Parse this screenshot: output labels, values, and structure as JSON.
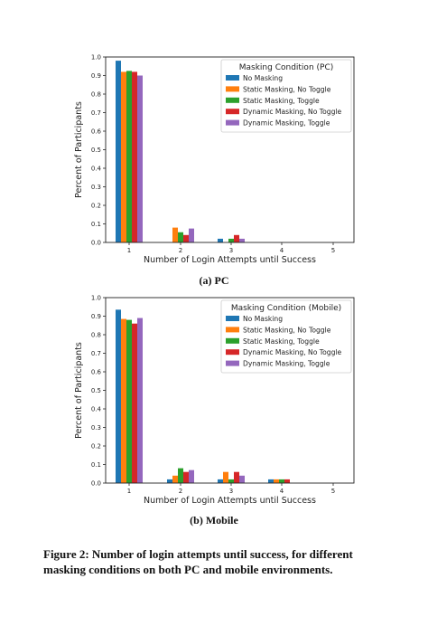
{
  "chart_data": [
    {
      "type": "bar",
      "categories": [
        "1",
        "2",
        "3",
        "4",
        "5"
      ],
      "xlabel": "Number of Login Attempts until Success",
      "ylabel": "Percent of Participants",
      "ylim": [
        0,
        1.0
      ],
      "yticks": [
        "0.0",
        "0.1",
        "0.2",
        "0.3",
        "0.4",
        "0.5",
        "0.6",
        "0.7",
        "0.8",
        "0.9",
        "1.0"
      ],
      "legend_title": "Masking Condition (PC)",
      "legend_position": "top-right",
      "series": [
        {
          "name": "No Masking",
          "color": "#1f77b4",
          "values": [
            0.98,
            0.0,
            0.02,
            0.0,
            0.0
          ]
        },
        {
          "name": "Static Masking, No Toggle",
          "color": "#ff7f0e",
          "values": [
            0.92,
            0.08,
            0.0,
            0.0,
            0.0
          ]
        },
        {
          "name": "Static Masking, Toggle",
          "color": "#2ca02c",
          "values": [
            0.925,
            0.055,
            0.02,
            0.0,
            0.0
          ]
        },
        {
          "name": "Dynamic Masking, No Toggle",
          "color": "#d62728",
          "values": [
            0.92,
            0.04,
            0.04,
            0.0,
            0.0
          ]
        },
        {
          "name": "Dynamic Masking, Toggle",
          "color": "#9467bd",
          "values": [
            0.9,
            0.075,
            0.02,
            0.0,
            0.0
          ]
        }
      ],
      "caption": "(a) PC"
    },
    {
      "type": "bar",
      "categories": [
        "1",
        "2",
        "3",
        "4",
        "5"
      ],
      "xlabel": "Number of Login Attempts until Success",
      "ylabel": "Percent of Participants",
      "ylim": [
        0,
        1.0
      ],
      "yticks": [
        "0.0",
        "0.1",
        "0.2",
        "0.3",
        "0.4",
        "0.5",
        "0.6",
        "0.7",
        "0.8",
        "0.9",
        "1.0"
      ],
      "legend_title": "Masking Condition (Mobile)",
      "legend_position": "top-right",
      "series": [
        {
          "name": "No Masking",
          "color": "#1f77b4",
          "values": [
            0.935,
            0.02,
            0.02,
            0.02,
            0.0
          ]
        },
        {
          "name": "Static Masking, No Toggle",
          "color": "#ff7f0e",
          "values": [
            0.885,
            0.04,
            0.06,
            0.02,
            0.0
          ]
        },
        {
          "name": "Static Masking, Toggle",
          "color": "#2ca02c",
          "values": [
            0.88,
            0.08,
            0.02,
            0.02,
            0.0
          ]
        },
        {
          "name": "Dynamic Masking, No Toggle",
          "color": "#d62728",
          "values": [
            0.86,
            0.06,
            0.06,
            0.02,
            0.0
          ]
        },
        {
          "name": "Dynamic Masking, Toggle",
          "color": "#9467bd",
          "values": [
            0.89,
            0.07,
            0.04,
            0.0,
            0.0
          ]
        }
      ],
      "caption": "(b) Mobile"
    }
  ],
  "figure_caption": "Figure 2: Number of login attempts until success, for different masking conditions on both PC and mobile environments."
}
